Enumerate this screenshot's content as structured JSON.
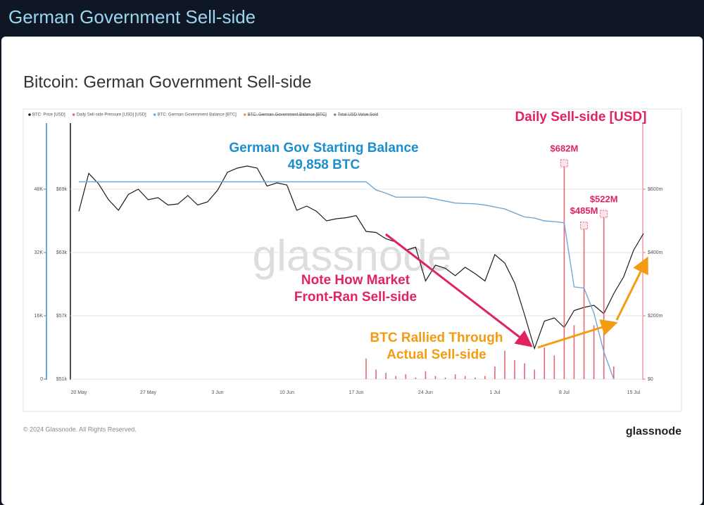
{
  "header": {
    "title": "German Government Sell-side"
  },
  "footer": {
    "copyright": "© 2024 Glassnode. All Rights Reserved.",
    "logo": "glassnode"
  },
  "chart_data": {
    "type": "line",
    "title": "Bitcoin: German Government Sell-side",
    "watermark": "glassnode",
    "categories": [
      "20 May",
      null,
      null,
      null,
      null,
      null,
      null,
      "27 May",
      null,
      null,
      null,
      null,
      null,
      null,
      "3 Jun",
      null,
      null,
      null,
      null,
      null,
      null,
      "10 Jun",
      null,
      null,
      null,
      null,
      null,
      null,
      "17 Jun",
      null,
      null,
      null,
      null,
      null,
      null,
      "24 Jun",
      null,
      null,
      null,
      null,
      null,
      null,
      "1 Jul",
      null,
      null,
      null,
      null,
      null,
      null,
      "8 Jul",
      null,
      null,
      null,
      null,
      null,
      null,
      "15 Jul",
      null
    ],
    "ylim": [
      51000,
      75000
    ],
    "yticks": [
      {
        "value": 51000,
        "label": "$51k"
      },
      {
        "value": 57000,
        "label": "$57k"
      },
      {
        "value": 63000,
        "label": "$63k"
      },
      {
        "value": 69000,
        "label": "$69k"
      }
    ],
    "y2lim": [
      0,
      800000000
    ],
    "y2ticks": [
      {
        "value": 0,
        "label": "$0"
      },
      {
        "value": 200000000,
        "label": "$200m"
      },
      {
        "value": 400000000,
        "label": "$400m"
      },
      {
        "value": 600000000,
        "label": "$600m"
      }
    ],
    "y3lim": [
      0,
      64000
    ],
    "y3ticks": [
      0,
      {
        "value": 16000,
        "label": "16K"
      },
      {
        "value": 32000,
        "label": "32K"
      },
      {
        "value": 48000,
        "label": "48K"
      }
    ],
    "grid": true,
    "series": [
      {
        "name": "BTC: Price [USD]",
        "color": "#1c1c1c",
        "type": "line",
        "axis": "y",
        "values": [
          66900,
          70500,
          69500,
          68000,
          67000,
          68500,
          69000,
          68000,
          68200,
          67500,
          67600,
          68400,
          67500,
          67800,
          68900,
          70600,
          71000,
          71200,
          71000,
          69300,
          69600,
          69400,
          67000,
          67400,
          66900,
          66000,
          66200,
          66300,
          66500,
          65000,
          64900,
          64300,
          64000,
          63200,
          63500,
          60300,
          61800,
          61500,
          60800,
          61600,
          61000,
          60300,
          62800,
          62000,
          60100,
          57100,
          53900,
          56500,
          56800,
          55900,
          57500,
          57800,
          58000,
          57200,
          59100,
          60700,
          63200,
          64800
        ]
      },
      {
        "name": "Daily Sell-side Pressure [USD] [USD]",
        "color": "#e06a78",
        "type": "bar",
        "axis": "y2",
        "values": [
          0,
          0,
          0,
          0,
          0,
          0,
          0,
          0,
          0,
          0,
          0,
          0,
          0,
          0,
          0,
          0,
          0,
          0,
          0,
          0,
          0,
          0,
          0,
          0,
          0,
          0,
          0,
          0,
          0,
          65000000,
          30000000,
          20000000,
          10000000,
          15000000,
          5000000,
          25000000,
          10000000,
          5000000,
          15000000,
          10000000,
          5000000,
          10000000,
          40000000,
          90000000,
          60000000,
          50000000,
          30000000,
          100000000,
          75000000,
          682000000,
          170000000,
          485000000,
          170000000,
          522000000,
          40000000,
          0,
          0,
          0
        ],
        "value_labels": [
          null,
          null,
          null,
          null,
          null,
          null,
          null,
          null,
          null,
          null,
          null,
          null,
          null,
          null,
          null,
          null,
          null,
          null,
          null,
          null,
          null,
          null,
          null,
          null,
          null,
          null,
          null,
          null,
          null,
          null,
          null,
          null,
          null,
          null,
          null,
          null,
          null,
          null,
          null,
          null,
          null,
          null,
          null,
          null,
          null,
          null,
          null,
          null,
          null,
          "$682M",
          null,
          "$485M",
          null,
          "$522M",
          null,
          null,
          null,
          null
        ]
      },
      {
        "name": "BTC: German Government Balance [BTC]",
        "color": "#6fa8d6",
        "type": "line",
        "axis": "y3",
        "values": [
          49858,
          49858,
          49858,
          49858,
          49858,
          49858,
          49858,
          49858,
          49858,
          49858,
          49858,
          49858,
          49858,
          49858,
          49858,
          49858,
          49858,
          49858,
          49858,
          49858,
          49858,
          49858,
          49858,
          49858,
          49858,
          49858,
          49858,
          49858,
          49858,
          49858,
          47800,
          47000,
          46000,
          46000,
          46000,
          46000,
          45500,
          45000,
          44500,
          44400,
          44300,
          44000,
          43500,
          43000,
          42000,
          41000,
          40700,
          40000,
          39800,
          39500,
          23300,
          23000,
          16700,
          6900,
          0,
          null,
          null,
          null
        ]
      }
    ],
    "hidden_series": [
      {
        "name": "BTC: German Government Balance [BTC]",
        "color": "#f0a030"
      },
      {
        "name": "Total USD Value Sold",
        "color": "#6a8caf"
      }
    ],
    "annotations": [
      {
        "lines": [
          "Daily Sell-side [USD]"
        ],
        "color": "#e0245e"
      },
      {
        "lines": [
          "German Gov Starting Balance",
          "49,858 BTC"
        ],
        "color": "#1a8fd0"
      },
      {
        "lines": [
          "Note How Market",
          "Front-Ran Sell-side"
        ],
        "color": "#e0245e"
      },
      {
        "lines": [
          "BTC Rallied Through",
          "Actual Sell-side"
        ],
        "color": "#f39c12"
      }
    ]
  }
}
